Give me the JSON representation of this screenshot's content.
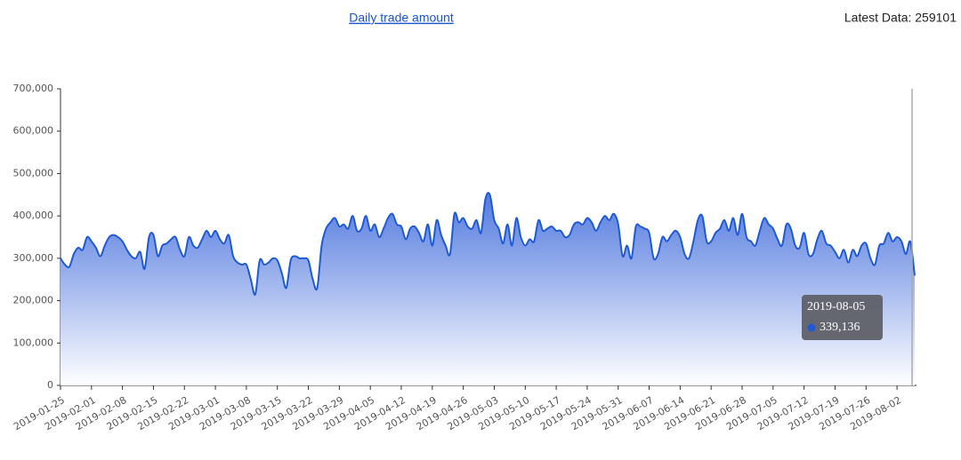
{
  "header": {
    "title": "Daily trade amount",
    "latest": "Latest Data: 259101"
  },
  "chart_data": {
    "type": "area",
    "categories": [
      "2019-01-25",
      null,
      null,
      null,
      null,
      null,
      null,
      "2019-02-01",
      null,
      null,
      null,
      null,
      null,
      null,
      "2019-02-08",
      null,
      null,
      null,
      null,
      null,
      null,
      "2019-02-15",
      null,
      null,
      null,
      null,
      null,
      null,
      "2019-02-22",
      null,
      null,
      null,
      null,
      null,
      null,
      "2019-03-01",
      null,
      null,
      null,
      null,
      null,
      null,
      "2019-03-08",
      null,
      null,
      null,
      null,
      null,
      null,
      "2019-03-15",
      null,
      null,
      null,
      null,
      null,
      null,
      "2019-03-22",
      null,
      null,
      null,
      null,
      null,
      null,
      "2019-03-29",
      null,
      null,
      null,
      null,
      null,
      null,
      "2019-04-05",
      null,
      null,
      null,
      null,
      null,
      null,
      "2019-04-12",
      null,
      null,
      null,
      null,
      null,
      null,
      "2019-04-19",
      null,
      null,
      null,
      null,
      null,
      null,
      "2019-04-26",
      null,
      null,
      null,
      null,
      null,
      null,
      "2019-05-03",
      null,
      null,
      null,
      null,
      null,
      null,
      "2019-05-10",
      null,
      null,
      null,
      null,
      null,
      null,
      "2019-05-17",
      null,
      null,
      null,
      null,
      null,
      null,
      "2019-05-24",
      null,
      null,
      null,
      null,
      null,
      null,
      "2019-05-31",
      null,
      null,
      null,
      null,
      null,
      null,
      "2019-06-07",
      null,
      null,
      null,
      null,
      null,
      null,
      "2019-06-14",
      null,
      null,
      null,
      null,
      null,
      null,
      "2019-06-21",
      null,
      null,
      null,
      null,
      null,
      null,
      "2019-06-28",
      null,
      null,
      null,
      null,
      null,
      null,
      "2019-07-05",
      null,
      null,
      null,
      null,
      null,
      null,
      "2019-07-12",
      null,
      null,
      null,
      null,
      null,
      null,
      "2019-07-19",
      null,
      null,
      null,
      null,
      null,
      null,
      "2019-07-26",
      null,
      null,
      null,
      null,
      null,
      null,
      "2019-08-02",
      null,
      null,
      null,
      null
    ],
    "values": [
      300000,
      285000,
      280000,
      310000,
      325000,
      320000,
      350000,
      340000,
      325000,
      305000,
      330000,
      350000,
      355000,
      350000,
      340000,
      320000,
      305000,
      300000,
      315000,
      275000,
      350000,
      355000,
      305000,
      330000,
      335000,
      345000,
      350000,
      320000,
      305000,
      350000,
      330000,
      325000,
      345000,
      365000,
      350000,
      365000,
      345000,
      335000,
      355000,
      305000,
      290000,
      285000,
      285000,
      250000,
      215000,
      295000,
      285000,
      290000,
      300000,
      295000,
      265000,
      230000,
      295000,
      305000,
      300000,
      300000,
      295000,
      250000,
      230000,
      330000,
      370000,
      385000,
      395000,
      375000,
      380000,
      370000,
      400000,
      365000,
      370000,
      400000,
      365000,
      380000,
      350000,
      370000,
      395000,
      405000,
      380000,
      375000,
      345000,
      370000,
      375000,
      360000,
      340000,
      380000,
      330000,
      390000,
      355000,
      330000,
      310000,
      405000,
      385000,
      395000,
      375000,
      370000,
      390000,
      360000,
      440000,
      450000,
      390000,
      370000,
      335000,
      380000,
      330000,
      395000,
      350000,
      330000,
      345000,
      340000,
      390000,
      365000,
      370000,
      375000,
      365000,
      365000,
      350000,
      355000,
      380000,
      385000,
      380000,
      395000,
      385000,
      365000,
      385000,
      400000,
      390000,
      405000,
      380000,
      305000,
      330000,
      300000,
      375000,
      375000,
      370000,
      360000,
      300000,
      310000,
      350000,
      340000,
      355000,
      365000,
      350000,
      310000,
      300000,
      340000,
      390000,
      400000,
      340000,
      340000,
      360000,
      370000,
      390000,
      365000,
      395000,
      355000,
      405000,
      350000,
      340000,
      330000,
      365000,
      395000,
      380000,
      370000,
      345000,
      330000,
      380000,
      370000,
      330000,
      325000,
      360000,
      310000,
      310000,
      345000,
      365000,
      335000,
      330000,
      315000,
      300000,
      320000,
      290000,
      320000,
      305000,
      330000,
      335000,
      300000,
      285000,
      330000,
      335000,
      360000,
      340000,
      350000,
      340000,
      310000,
      339136,
      259101
    ],
    "color": "#1f5ad6",
    "ylim": [
      0,
      700000
    ],
    "yticks": [
      0,
      {
        "value": 100000,
        "label": "100,000"
      },
      {
        "value": 200000,
        "label": "200,000"
      },
      {
        "value": 300000,
        "label": "300,000"
      },
      {
        "value": 400000,
        "label": "400,000"
      },
      {
        "value": 500000,
        "label": "500,000"
      },
      {
        "value": 600000,
        "label": "600,000"
      },
      {
        "value": 700000,
        "label": "700,000"
      }
    ],
    "tooltip": {
      "x": "2019-08-05",
      "value": 339136,
      "value_label": "339,136"
    }
  }
}
